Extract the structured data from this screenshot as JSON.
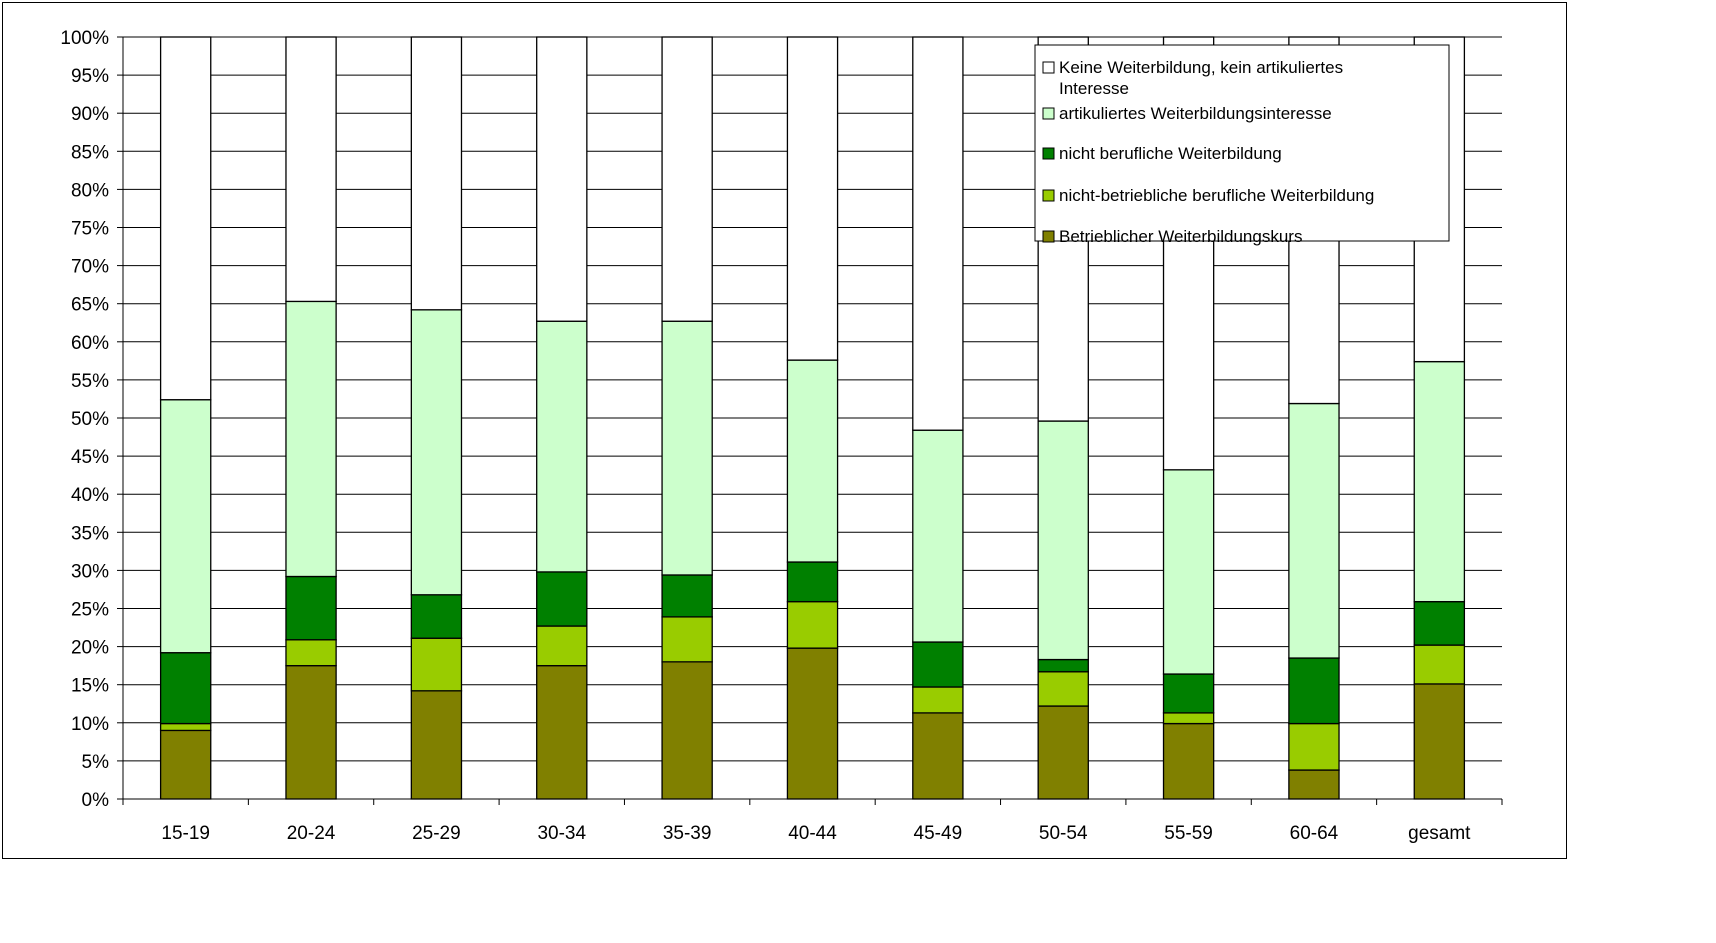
{
  "chart_data": {
    "type": "bar",
    "stacked": true,
    "percent_stacked": true,
    "title": "",
    "xlabel": "",
    "ylabel": "",
    "ylim": [
      0,
      100
    ],
    "y_ticks": [
      "0%",
      "5%",
      "10%",
      "15%",
      "20%",
      "25%",
      "30%",
      "35%",
      "40%",
      "45%",
      "50%",
      "55%",
      "60%",
      "65%",
      "70%",
      "75%",
      "80%",
      "85%",
      "90%",
      "95%",
      "100%"
    ],
    "grid": true,
    "legend_position": "top-right",
    "categories": [
      "15-19",
      "20-24",
      "25-29",
      "30-34",
      "35-39",
      "40-44",
      "45-49",
      "50-54",
      "55-59",
      "60-64",
      "gesamt"
    ],
    "series": [
      {
        "name": "Betrieblicher Weiterbildungskurs",
        "color": "#808000",
        "values": [
          9,
          17.5,
          14.2,
          17.5,
          18,
          19.8,
          11.3,
          12.2,
          9.9,
          3.8,
          15.1
        ]
      },
      {
        "name": "nicht-betriebliche berufliche Weiterbildung",
        "color": "#99CC00",
        "values": [
          0.9,
          3.4,
          6.9,
          5.2,
          5.9,
          6.1,
          3.4,
          4.5,
          1.4,
          6.1,
          5.1
        ]
      },
      {
        "name": "nicht berufliche Weiterbildung",
        "color": "#008000",
        "values": [
          9.3,
          8.3,
          5.7,
          7.1,
          5.5,
          5.2,
          5.9,
          1.6,
          5.1,
          8.6,
          5.7
        ]
      },
      {
        "name": "artikuliertes Weiterbildungsinteresse",
        "color": "#CCFFCC",
        "values": [
          33.2,
          36.1,
          37.4,
          32.9,
          33.3,
          26.5,
          27.8,
          31.3,
          26.8,
          33.4,
          31.5
        ]
      },
      {
        "name": "Keine Weiterbildung, kein artikuliertes Interesse",
        "color": "#FFFFFF",
        "values": [
          47.6,
          34.7,
          35.8,
          37.3,
          37.3,
          42.4,
          51.6,
          50.4,
          56.8,
          48.1,
          42.6
        ]
      }
    ],
    "legend_order": [
      4,
      3,
      2,
      1,
      0
    ]
  }
}
